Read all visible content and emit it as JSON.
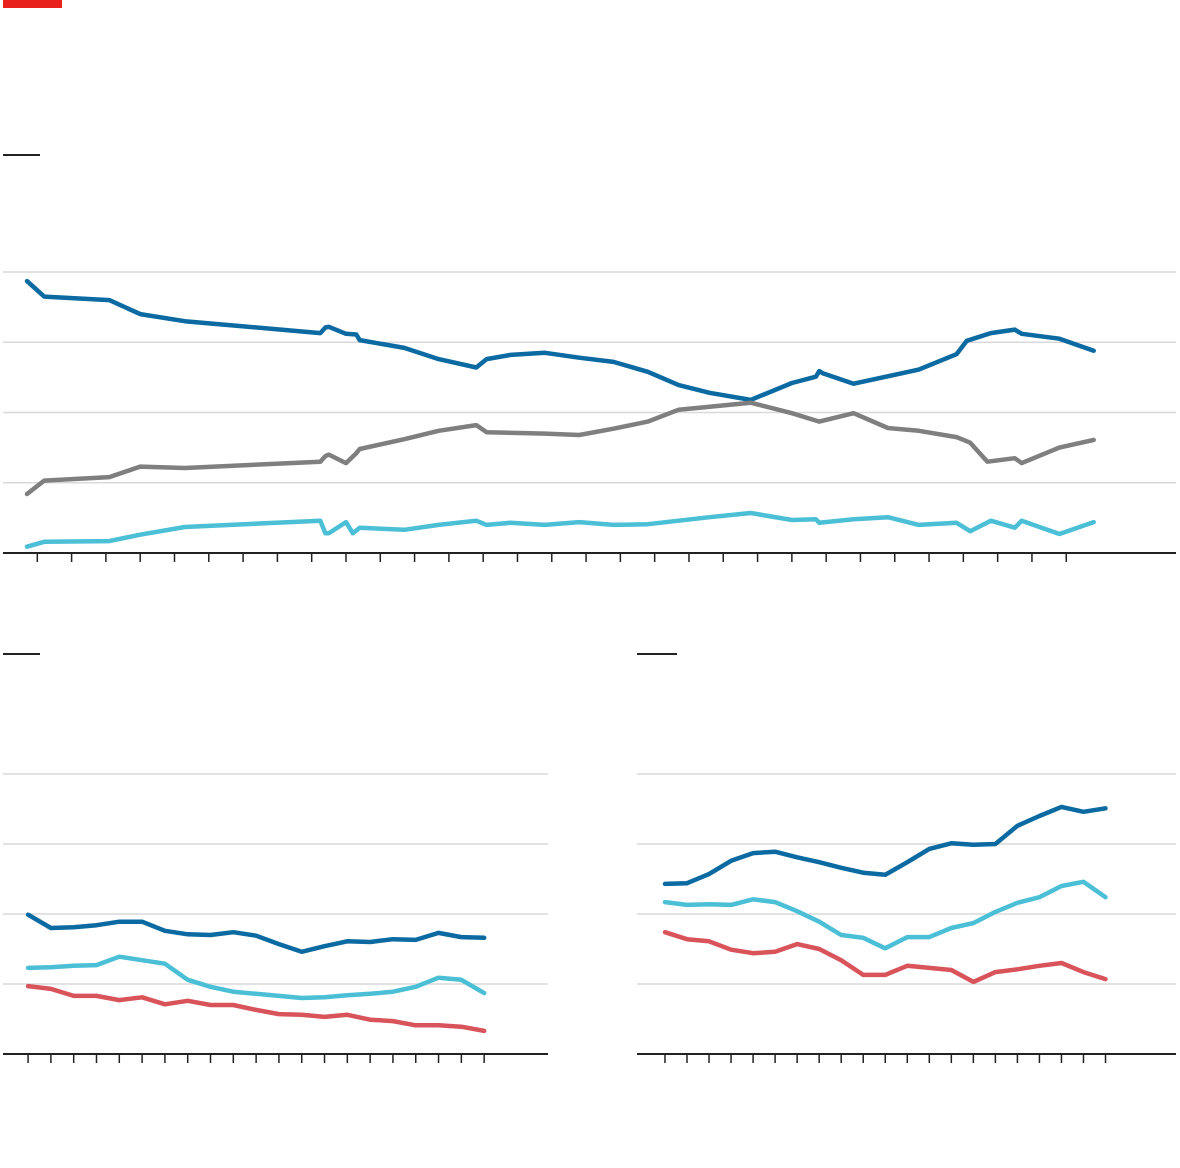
{
  "chart_data": [
    {
      "type": "line",
      "xlim": [
        0,
        34.2
      ],
      "ylim": [
        0,
        40
      ],
      "yticks": [
        0,
        10,
        20,
        30,
        40
      ],
      "grid": true,
      "xticks": [
        1,
        2,
        3,
        4,
        5,
        6,
        7,
        8,
        9,
        10,
        11,
        12,
        13,
        14,
        15,
        16,
        17,
        18,
        19,
        20,
        21,
        22,
        23,
        24,
        25,
        26,
        27,
        28,
        29,
        30,
        31
      ],
      "series": [
        {
          "color": "#0b6aa2",
          "x": [
            0.7,
            1.2,
            3.1,
            4.0,
            5.3,
            9.25,
            9.4,
            9.5,
            10.0,
            10.3,
            10.4,
            11.7,
            12.7,
            13.8,
            14.1,
            14.8,
            15.8,
            16.8,
            17.8,
            18.8,
            19.7,
            20.6,
            21.8,
            23.0,
            23.7,
            23.8,
            23.9,
            24.8,
            26.7,
            27.8,
            28.1,
            28.8,
            29.5,
            29.7,
            30.8,
            31.8
          ],
          "values": [
            38.7,
            36.5,
            36.0,
            34.0,
            33.0,
            31.3,
            32.1,
            32.2,
            31.2,
            31.1,
            30.3,
            29.2,
            27.6,
            26.4,
            27.6,
            28.2,
            28.5,
            27.8,
            27.2,
            25.8,
            23.9,
            22.8,
            21.8,
            24.2,
            25.1,
            25.9,
            25.6,
            24.1,
            26.1,
            28.3,
            30.2,
            31.3,
            31.8,
            31.2,
            30.5,
            28.8
          ]
        },
        {
          "color": "#7f7f7f",
          "x": [
            0.7,
            1.2,
            3.1,
            4.0,
            5.3,
            9.25,
            9.4,
            9.5,
            10.0,
            10.3,
            10.4,
            11.7,
            12.7,
            13.8,
            14.1,
            15.8,
            16.8,
            17.8,
            18.8,
            19.7,
            21.8,
            23.0,
            23.8,
            24.8,
            25.8,
            26.7,
            27.8,
            28.2,
            28.7,
            29.5,
            29.7,
            30.8,
            31.8
          ],
          "values": [
            8.4,
            10.3,
            10.8,
            12.3,
            12.1,
            13.0,
            13.8,
            14.0,
            12.8,
            14.2,
            14.8,
            16.2,
            17.4,
            18.2,
            17.2,
            17.0,
            16.8,
            17.7,
            18.7,
            20.4,
            21.4,
            19.9,
            18.7,
            19.9,
            17.8,
            17.4,
            16.5,
            15.7,
            13.0,
            13.5,
            12.8,
            15.0,
            16.1
          ]
        },
        {
          "color": "#4bbfd6",
          "x": [
            0.7,
            1.2,
            3.1,
            4.0,
            5.3,
            9.25,
            9.4,
            9.5,
            10.0,
            10.2,
            10.4,
            11.7,
            12.7,
            13.8,
            14.1,
            14.8,
            15.8,
            16.8,
            17.8,
            18.8,
            19.7,
            20.6,
            21.8,
            23.0,
            23.7,
            23.8,
            24.8,
            25.8,
            26.7,
            27.8,
            28.2,
            28.8,
            29.5,
            29.7,
            30.8,
            31.8
          ],
          "values": [
            0.9,
            1.6,
            1.7,
            2.6,
            3.7,
            4.6,
            2.8,
            2.8,
            4.4,
            2.8,
            3.6,
            3.3,
            4.0,
            4.6,
            4.0,
            4.3,
            4.0,
            4.4,
            4.0,
            4.1,
            4.6,
            5.1,
            5.7,
            4.7,
            4.8,
            4.3,
            4.8,
            5.1,
            4.0,
            4.3,
            3.1,
            4.6,
            3.6,
            4.6,
            2.7,
            4.4
          ]
        }
      ]
    },
    {
      "type": "line",
      "xlim": [
        -1.1,
        22.8
      ],
      "ylim": [
        0,
        40
      ],
      "yticks": [
        0,
        10,
        20,
        30,
        40
      ],
      "grid": true,
      "xticks": [
        0,
        1,
        2,
        3,
        4,
        5,
        6,
        7,
        8,
        9,
        10,
        11,
        12,
        13,
        14,
        15,
        16,
        17,
        18,
        19,
        20
      ],
      "x": [
        0,
        1,
        2,
        3,
        4,
        5,
        6,
        7,
        8,
        9,
        10,
        11,
        12,
        13,
        14,
        15,
        16,
        17,
        18,
        19,
        20
      ],
      "series": [
        {
          "color": "#0b6aa2",
          "values": [
            19.9,
            18.0,
            18.1,
            18.4,
            18.9,
            18.9,
            17.6,
            17.1,
            17.0,
            17.4,
            16.9,
            15.7,
            14.6,
            15.4,
            16.1,
            16.0,
            16.4,
            16.3,
            17.3,
            16.7,
            16.6
          ]
        },
        {
          "color": "#4bbfd6",
          "values": [
            12.3,
            12.4,
            12.6,
            12.7,
            13.9,
            13.4,
            12.9,
            10.6,
            9.6,
            8.9,
            8.6,
            8.3,
            8.0,
            8.1,
            8.4,
            8.6,
            8.9,
            9.6,
            10.9,
            10.6,
            8.7
          ]
        },
        {
          "color": "#d9545a",
          "values": [
            9.7,
            9.3,
            8.3,
            8.3,
            7.7,
            8.1,
            7.1,
            7.6,
            7.0,
            7.0,
            6.3,
            5.7,
            5.6,
            5.3,
            5.6,
            4.9,
            4.7,
            4.1,
            4.1,
            3.9,
            3.3
          ]
        }
      ]
    },
    {
      "type": "line",
      "xlim": [
        -1.27,
        23.2
      ],
      "ylim": [
        0,
        40
      ],
      "yticks": [
        0,
        10,
        20,
        30,
        40
      ],
      "grid": true,
      "xticks": [
        0,
        1,
        2,
        3,
        4,
        5,
        6,
        7,
        8,
        9,
        10,
        11,
        12,
        13,
        14,
        15,
        16,
        17,
        18,
        19,
        20
      ],
      "x": [
        0,
        1,
        2,
        3,
        4,
        5,
        6,
        7,
        8,
        9,
        10,
        11,
        12,
        13,
        14,
        15,
        16,
        17,
        18,
        19,
        20
      ],
      "series": [
        {
          "color": "#0b6aa2",
          "values": [
            24.3,
            24.4,
            25.7,
            27.6,
            28.7,
            28.9,
            28.1,
            27.4,
            26.6,
            25.9,
            25.6,
            27.4,
            29.3,
            30.1,
            29.9,
            30.0,
            32.6,
            34.0,
            35.3,
            34.6,
            35.1
          ]
        },
        {
          "color": "#4bbfd6",
          "values": [
            21.7,
            21.3,
            21.4,
            21.3,
            22.1,
            21.7,
            20.4,
            18.9,
            17.0,
            16.6,
            15.1,
            16.7,
            16.7,
            18.0,
            18.7,
            20.3,
            21.6,
            22.4,
            24.0,
            24.6,
            22.4
          ]
        },
        {
          "color": "#d9545a",
          "values": [
            17.4,
            16.4,
            16.1,
            14.9,
            14.4,
            14.6,
            15.7,
            15.0,
            13.4,
            11.3,
            11.3,
            12.6,
            12.3,
            12.0,
            10.3,
            11.7,
            12.1,
            12.6,
            13.0,
            11.7,
            10.7
          ]
        }
      ]
    }
  ]
}
